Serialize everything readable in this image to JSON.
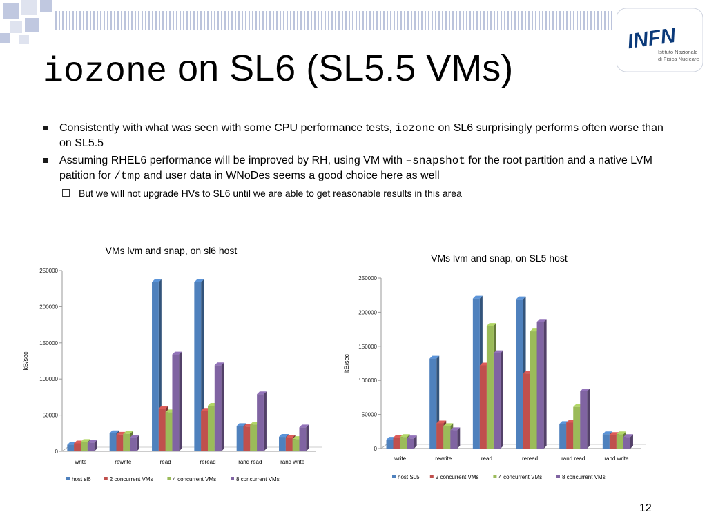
{
  "slide": {
    "title_mono": "iozone",
    "title_rest": "on SL6 (SL5.5 VMs)",
    "logo_text": "INFN",
    "logo_subtext_1": "Istituto Nazionale",
    "logo_subtext_2": "di Fisica Nucleare",
    "page_number": "12",
    "colors": {
      "decor": "#c0c8e0",
      "host": "#4f81bd",
      "c2": "#c0504d",
      "c4": "#9bbb59",
      "c8": "#8064a2",
      "logo": "#0b3a7a"
    },
    "bullets": [
      {
        "p1": "Consistently with what was seen with some CPU performance tests, ",
        "code1": "iozone",
        "p2": " on SL6 surprisingly performs often worse than on SL5.5",
        "code2": "",
        "p3": "",
        "code3": "",
        "p4": ""
      },
      {
        "p1": "Assuming RHEL6 performance will be improved by RH, using VM with ",
        "code1": "–snapshot",
        "p2": " for the root partition and a native LVM patition for ",
        "code2": "/tmp",
        "p3": " and user data in WNoDes seems a good choice here as well",
        "code3": "",
        "p4": ""
      }
    ],
    "sub_bullet": "But we will not upgrade HVs to SL6 until we are able to get reasonable results in this area"
  },
  "chart_data": [
    {
      "type": "bar",
      "title": "VMs lvm and snap, on sl6 host",
      "ylabel": "kB/sec",
      "xlabel": "",
      "ylim": [
        0,
        250000
      ],
      "yticks": [
        0,
        50000,
        100000,
        150000,
        200000,
        250000
      ],
      "categories": [
        "write",
        "rewrite",
        "read",
        "reread",
        "rand read",
        "rand write"
      ],
      "series": [
        {
          "name": "host sl6",
          "values": [
            9000,
            25000,
            234000,
            234000,
            35000,
            20000
          ]
        },
        {
          "name": "2 concurrent VMs",
          "values": [
            11000,
            23000,
            59000,
            56000,
            34000,
            19000
          ]
        },
        {
          "name": "4 concurrent VMs",
          "values": [
            13000,
            24000,
            54000,
            63000,
            37000,
            17000
          ]
        },
        {
          "name": "8 concurrent VMs",
          "values": [
            12000,
            19000,
            134000,
            119000,
            79000,
            33000
          ]
        }
      ],
      "legend": "bottom",
      "grid": false
    },
    {
      "type": "bar",
      "title": "VMs lvm and snap, on SL5 host",
      "ylabel": "kB/sec",
      "xlabel": "",
      "ylim": [
        0,
        250000
      ],
      "yticks": [
        0,
        50000,
        100000,
        150000,
        200000,
        250000
      ],
      "categories": [
        "write",
        "rewrite",
        "read",
        "reread",
        "rand read",
        "rand write"
      ],
      "series": [
        {
          "name": "host SL5",
          "values": [
            13000,
            132000,
            220000,
            219000,
            36000,
            21000
          ]
        },
        {
          "name": "2 concurrent VMs",
          "values": [
            16000,
            37000,
            122000,
            110000,
            38000,
            20000
          ]
        },
        {
          "name": "4 concurrent VMs",
          "values": [
            17000,
            33000,
            180000,
            172000,
            61000,
            21000
          ]
        },
        {
          "name": "8 concurrent VMs",
          "values": [
            15000,
            27000,
            140000,
            186000,
            84000,
            17000
          ]
        }
      ],
      "legend": "bottom",
      "grid": false
    }
  ]
}
